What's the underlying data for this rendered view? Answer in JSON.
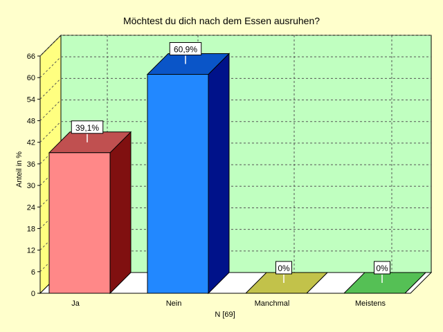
{
  "chart_data": {
    "type": "bar",
    "title": "Möchtest du dich nach dem Essen ausruhen?",
    "xlabel": "N [69]",
    "ylabel": "Anteil in %",
    "ylim": [
      0,
      66
    ],
    "yticks": [
      0,
      6,
      12,
      18,
      24,
      30,
      36,
      42,
      48,
      54,
      60,
      66
    ],
    "grid": true,
    "categories": [
      "Ja",
      "Nein",
      "Manchmal",
      "Meistens"
    ],
    "values": [
      39.1,
      60.9,
      0,
      0
    ],
    "data_labels": [
      "39,1%",
      "60,9%",
      "0%",
      "0%"
    ],
    "colors": [
      {
        "front": "#ff8888",
        "top": "#c05050",
        "side": "#801010"
      },
      {
        "front": "#2288ff",
        "top": "#0a55c8",
        "side": "#00128a"
      },
      {
        "front": "#c2c24a",
        "top": "#c2c24a",
        "side": "#8a8a20"
      },
      {
        "front": "#55c055",
        "top": "#55c055",
        "side": "#2a8a2a"
      }
    ],
    "plot_background": "#c0ffc0",
    "left_wall_color": "#ffff80"
  }
}
